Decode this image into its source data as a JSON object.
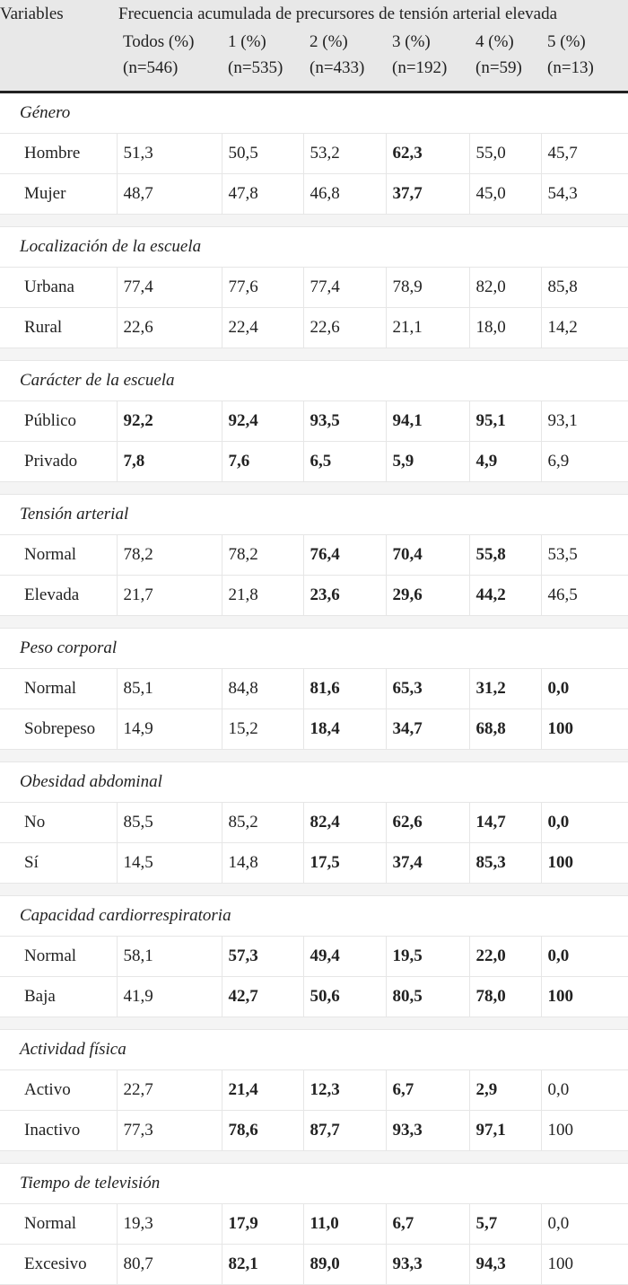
{
  "table": {
    "variables_header": "Variables",
    "group_header": "Frecuencia acumulada de precursores de tensión arterial elevada",
    "columns": [
      {
        "label": "Todos (%)",
        "n": "(n=546)"
      },
      {
        "label": "1 (%)",
        "n": "(n=535)"
      },
      {
        "label": "2 (%)",
        "n": "(n=433)"
      },
      {
        "label": "3 (%)",
        "n": "(n=192)"
      },
      {
        "label": "4 (%)",
        "n": "(n=59)"
      },
      {
        "label": "5 (%)",
        "n": "(n=13)"
      }
    ],
    "sections": [
      {
        "title": "Género",
        "rows": [
          {
            "label": "Hombre",
            "cells": [
              {
                "v": "51,3",
                "b": false
              },
              {
                "v": "50,5",
                "b": false
              },
              {
                "v": "53,2",
                "b": false
              },
              {
                "v": "62,3",
                "b": true
              },
              {
                "v": "55,0",
                "b": false
              },
              {
                "v": "45,7",
                "b": false
              }
            ]
          },
          {
            "label": "Mujer",
            "cells": [
              {
                "v": "48,7",
                "b": false
              },
              {
                "v": "47,8",
                "b": false
              },
              {
                "v": "46,8",
                "b": false
              },
              {
                "v": "37,7",
                "b": true
              },
              {
                "v": "45,0",
                "b": false
              },
              {
                "v": "54,3",
                "b": false
              }
            ]
          }
        ]
      },
      {
        "title": "Localización de la escuela",
        "rows": [
          {
            "label": "Urbana",
            "cells": [
              {
                "v": "77,4",
                "b": false
              },
              {
                "v": "77,6",
                "b": false
              },
              {
                "v": "77,4",
                "b": false
              },
              {
                "v": "78,9",
                "b": false
              },
              {
                "v": "82,0",
                "b": false
              },
              {
                "v": "85,8",
                "b": false
              }
            ]
          },
          {
            "label": "Rural",
            "cells": [
              {
                "v": "22,6",
                "b": false
              },
              {
                "v": "22,4",
                "b": false
              },
              {
                "v": "22,6",
                "b": false
              },
              {
                "v": "21,1",
                "b": false
              },
              {
                "v": "18,0",
                "b": false
              },
              {
                "v": "14,2",
                "b": false
              }
            ]
          }
        ]
      },
      {
        "title": "Carácter de la escuela",
        "rows": [
          {
            "label": "Público",
            "cells": [
              {
                "v": "92,2",
                "b": true
              },
              {
                "v": "92,4",
                "b": true
              },
              {
                "v": "93,5",
                "b": true
              },
              {
                "v": "94,1",
                "b": true
              },
              {
                "v": "95,1",
                "b": true
              },
              {
                "v": "93,1",
                "b": false
              }
            ]
          },
          {
            "label": "Privado",
            "cells": [
              {
                "v": "7,8",
                "b": true
              },
              {
                "v": "7,6",
                "b": true
              },
              {
                "v": "6,5",
                "b": true
              },
              {
                "v": "5,9",
                "b": true
              },
              {
                "v": "4,9",
                "b": true
              },
              {
                "v": "6,9",
                "b": false
              }
            ]
          }
        ]
      },
      {
        "title": "Tensión arterial",
        "rows": [
          {
            "label": "Normal",
            "cells": [
              {
                "v": "78,2",
                "b": false
              },
              {
                "v": "78,2",
                "b": false
              },
              {
                "v": "76,4",
                "b": true
              },
              {
                "v": "70,4",
                "b": true
              },
              {
                "v": "55,8",
                "b": true
              },
              {
                "v": "53,5",
                "b": false
              }
            ]
          },
          {
            "label": "Elevada",
            "cells": [
              {
                "v": "21,7",
                "b": false
              },
              {
                "v": "21,8",
                "b": false
              },
              {
                "v": "23,6",
                "b": true
              },
              {
                "v": "29,6",
                "b": true
              },
              {
                "v": "44,2",
                "b": true
              },
              {
                "v": "46,5",
                "b": false
              }
            ]
          }
        ]
      },
      {
        "title": "Peso corporal",
        "rows": [
          {
            "label": "Normal",
            "cells": [
              {
                "v": "85,1",
                "b": false
              },
              {
                "v": "84,8",
                "b": false
              },
              {
                "v": "81,6",
                "b": true
              },
              {
                "v": "65,3",
                "b": true
              },
              {
                "v": "31,2",
                "b": true
              },
              {
                "v": "0,0",
                "b": true
              }
            ]
          },
          {
            "label": "Sobrepeso",
            "cells": [
              {
                "v": "14,9",
                "b": false
              },
              {
                "v": "15,2",
                "b": false
              },
              {
                "v": "18,4",
                "b": true
              },
              {
                "v": "34,7",
                "b": true
              },
              {
                "v": "68,8",
                "b": true
              },
              {
                "v": "100",
                "b": true
              }
            ]
          }
        ]
      },
      {
        "title": "Obesidad abdominal",
        "rows": [
          {
            "label": "No",
            "cells": [
              {
                "v": "85,5",
                "b": false
              },
              {
                "v": "85,2",
                "b": false
              },
              {
                "v": "82,4",
                "b": true
              },
              {
                "v": "62,6",
                "b": true
              },
              {
                "v": "14,7",
                "b": true
              },
              {
                "v": "0,0",
                "b": true
              }
            ]
          },
          {
            "label": "Sí",
            "cells": [
              {
                "v": "14,5",
                "b": false
              },
              {
                "v": "14,8",
                "b": false
              },
              {
                "v": "17,5",
                "b": true
              },
              {
                "v": "37,4",
                "b": true
              },
              {
                "v": "85,3",
                "b": true
              },
              {
                "v": "100",
                "b": true
              }
            ]
          }
        ]
      },
      {
        "title": "Capacidad cardiorrespiratoria",
        "rows": [
          {
            "label": "Normal",
            "cells": [
              {
                "v": "58,1",
                "b": false
              },
              {
                "v": "57,3",
                "b": true
              },
              {
                "v": "49,4",
                "b": true
              },
              {
                "v": "19,5",
                "b": true
              },
              {
                "v": "22,0",
                "b": true
              },
              {
                "v": "0,0",
                "b": true
              }
            ]
          },
          {
            "label": "Baja",
            "cells": [
              {
                "v": "41,9",
                "b": false
              },
              {
                "v": "42,7",
                "b": true
              },
              {
                "v": "50,6",
                "b": true
              },
              {
                "v": "80,5",
                "b": true
              },
              {
                "v": "78,0",
                "b": true
              },
              {
                "v": "100",
                "b": true
              }
            ]
          }
        ]
      },
      {
        "title": "Actividad física",
        "rows": [
          {
            "label": "Activo",
            "cells": [
              {
                "v": "22,7",
                "b": false
              },
              {
                "v": "21,4",
                "b": true
              },
              {
                "v": "12,3",
                "b": true
              },
              {
                "v": "6,7",
                "b": true
              },
              {
                "v": "2,9",
                "b": true
              },
              {
                "v": "0,0",
                "b": false
              }
            ]
          },
          {
            "label": "Inactivo",
            "cells": [
              {
                "v": "77,3",
                "b": false
              },
              {
                "v": "78,6",
                "b": true
              },
              {
                "v": "87,7",
                "b": true
              },
              {
                "v": "93,3",
                "b": true
              },
              {
                "v": "97,1",
                "b": true
              },
              {
                "v": "100",
                "b": false
              }
            ]
          }
        ]
      },
      {
        "title": "Tiempo de televisión",
        "rows": [
          {
            "label": "Normal",
            "cells": [
              {
                "v": "19,3",
                "b": false
              },
              {
                "v": "17,9",
                "b": true
              },
              {
                "v": "11,0",
                "b": true
              },
              {
                "v": "6,7",
                "b": true
              },
              {
                "v": "5,7",
                "b": true
              },
              {
                "v": "0,0",
                "b": false
              }
            ]
          },
          {
            "label": "Excesivo",
            "cells": [
              {
                "v": "80,7",
                "b": false
              },
              {
                "v": "82,1",
                "b": true
              },
              {
                "v": "89,0",
                "b": true
              },
              {
                "v": "93,3",
                "b": true
              },
              {
                "v": "94,3",
                "b": true
              },
              {
                "v": "100",
                "b": false
              }
            ]
          }
        ]
      }
    ]
  }
}
